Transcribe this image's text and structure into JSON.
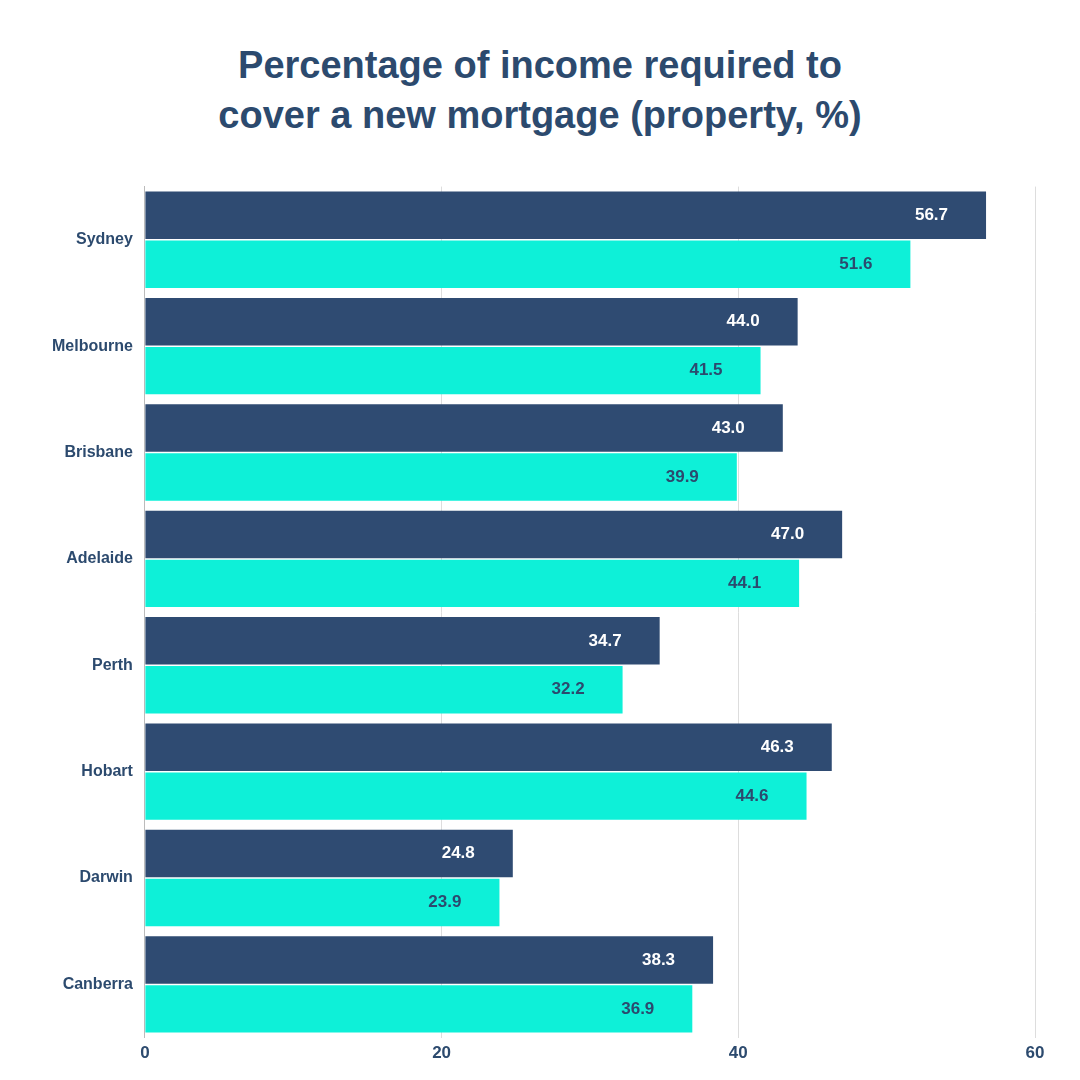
{
  "chart_data": {
    "type": "bar",
    "orientation": "horizontal",
    "title": "Percentage of income required to cover a new mortgage (property, %)",
    "categories": [
      "Sydney",
      "Melbourne",
      "Brisbane",
      "Adelaide",
      "Perth",
      "Hobart",
      "Darwin",
      "Canberra"
    ],
    "series": [
      {
        "color": "#2f4b72",
        "values": [
          56.7,
          44.0,
          43.0,
          47.0,
          34.7,
          46.3,
          24.8,
          38.3
        ],
        "value_labels": [
          "56.7",
          "44.0",
          "43.0",
          "47.0",
          "34.7",
          "46.3",
          "24.8",
          "38.3"
        ]
      },
      {
        "color": "#0ef0d8",
        "values": [
          51.6,
          41.5,
          39.9,
          44.1,
          32.2,
          44.6,
          23.9,
          36.9
        ],
        "value_labels": [
          "51.6",
          "41.5",
          "39.9",
          "44.1",
          "32.2",
          "44.6",
          "23.9",
          "36.9"
        ]
      }
    ],
    "xlim": [
      0,
      60
    ],
    "xticks": [
      0,
      20,
      40,
      60
    ],
    "grid": true,
    "data_labels": true
  }
}
